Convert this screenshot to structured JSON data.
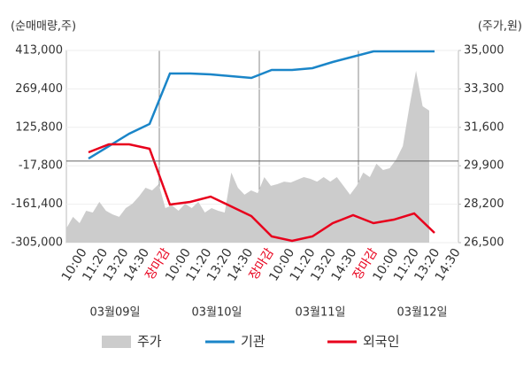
{
  "chart_data": {
    "type": "line",
    "y_label": "(순매매량,주)",
    "y2_label": "(주가,원)",
    "ylim": [
      -305000,
      413000
    ],
    "yticks": [
      {
        "value": 413000,
        "label": "413,000"
      },
      {
        "value": 269400,
        "label": "269,400"
      },
      {
        "value": 125800,
        "label": "125,800"
      },
      {
        "value": -17800,
        "label": "-17,800"
      },
      {
        "value": -161400,
        "label": "-161,400"
      },
      {
        "value": -305000,
        "label": "-305,000"
      }
    ],
    "y2lim": [
      26500,
      35000
    ],
    "y2ticks": [
      {
        "value": 35000,
        "label": "35,000"
      },
      {
        "value": 33300,
        "label": "33,300"
      },
      {
        "value": 31600,
        "label": "31,600"
      },
      {
        "value": 29900,
        "label": "29,900"
      },
      {
        "value": 28200,
        "label": "28,200"
      },
      {
        "value": 26500,
        "label": "26,500"
      }
    ],
    "x_tick_labels": [
      "10:00",
      "11:20",
      "13:20",
      "14:30",
      "장마감",
      "10:00",
      "11:20",
      "13:20",
      "14:30",
      "장마감",
      "10:00",
      "11:20",
      "13:20",
      "14:30",
      "장마감",
      "10:00",
      "11:20",
      "13:20",
      "14:30"
    ],
    "x_group_labels": [
      "03월09일",
      "03월10일",
      "03월11일",
      "03월12일"
    ],
    "highlight_color": "#e8001c",
    "grid": true,
    "legend": "bottom",
    "series": [
      {
        "name": "주가",
        "color": "#cccccc",
        "axis": "y2",
        "kind": "area",
        "values": [
          27130,
          27640,
          27360,
          27910,
          27830,
          28300,
          27910,
          27750,
          27640,
          28030,
          28220,
          28540,
          28930,
          28810,
          29090,
          28030,
          28150,
          27910,
          28220,
          28030,
          28300,
          27830,
          28030,
          27910,
          27830,
          29600,
          28930,
          28620,
          28810,
          28690,
          29400,
          29010,
          29090,
          29200,
          29160,
          29280,
          29400,
          29320,
          29200,
          29400,
          29200,
          29400,
          29010,
          28620,
          29010,
          29600,
          29400,
          29990,
          29710,
          29790,
          30180,
          30770,
          32530,
          34100,
          32530,
          32340
        ]
      },
      {
        "name": "기관",
        "color": "#1a85c8",
        "values": [
          9300,
          55600,
          102000,
          138400,
          327000,
          327000,
          323700,
          317000,
          310400,
          340200,
          340200,
          346800,
          370000,
          389800,
          409700,
          409700,
          409700,
          409700
        ]
      },
      {
        "name": "외국인",
        "color": "#e8001c",
        "values": [
          32500,
          62300,
          62300,
          45700,
          -162700,
          -152800,
          -133000,
          -169400,
          -205800,
          -281800,
          -298400,
          -281800,
          -232200,
          -202400,
          -232200,
          -219000,
          -195800,
          -268600
        ]
      }
    ]
  }
}
